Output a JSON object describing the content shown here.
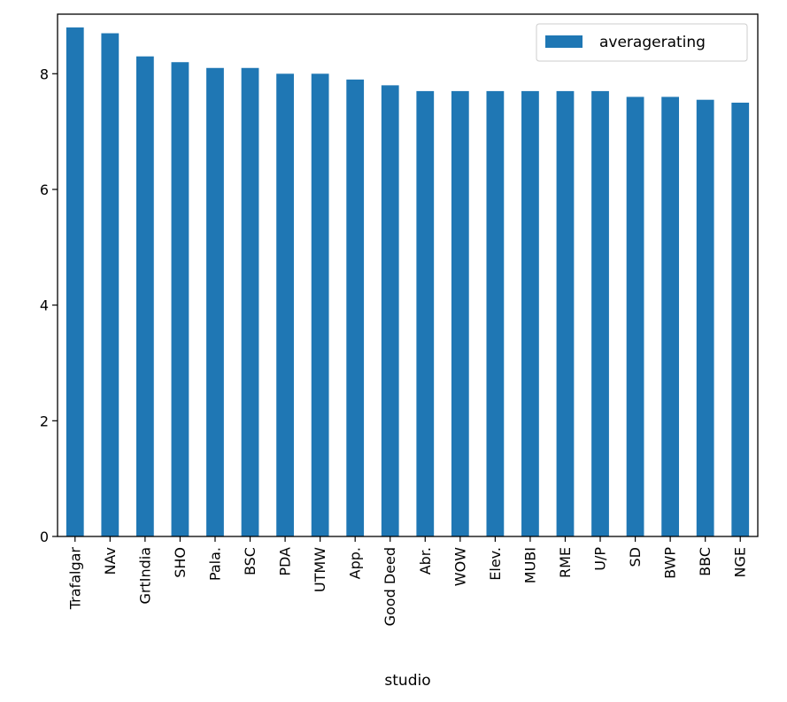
{
  "chart_data": {
    "type": "bar",
    "xlabel": "studio",
    "ylabel": "",
    "ylim": [
      0,
      9.03
    ],
    "yticks": [
      0,
      2,
      4,
      6,
      8
    ],
    "categories": [
      "Trafalgar",
      "NAv",
      "GrtIndia",
      "SHO",
      "Pala.",
      "BSC",
      "PDA",
      "UTMW",
      "App.",
      "Good Deed",
      "Abr.",
      "WOW",
      "Elev.",
      "MUBI",
      "RME",
      "U/P",
      "SD",
      "BWP",
      "BBC",
      "NGE"
    ],
    "series": [
      {
        "name": "averagerating",
        "color": "#1f77b4",
        "values": [
          8.8,
          8.7,
          8.3,
          8.2,
          8.1,
          8.1,
          8.0,
          8.0,
          7.9,
          7.8,
          7.7,
          7.7,
          7.7,
          7.7,
          7.7,
          7.7,
          7.6,
          7.6,
          7.55,
          7.5
        ]
      }
    ],
    "legend": "top-right",
    "grid": false
  }
}
